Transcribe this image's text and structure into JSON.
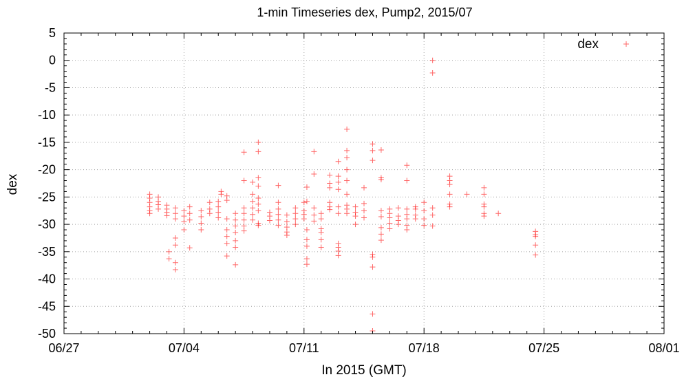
{
  "chart_data": {
    "type": "scatter",
    "title": "1-min Timeseries dex, Pump2, 2015/07",
    "xlabel": "In 2015 (GMT)",
    "ylabel": "dex",
    "xlim": [
      "2015-06-27",
      "2015-08-01"
    ],
    "ylim": [
      -50,
      5
    ],
    "x_ticks": [
      "06/27",
      "07/04",
      "07/11",
      "07/18",
      "07/25",
      "08/01"
    ],
    "y_ticks": [
      "5",
      "0",
      "-5",
      "-10",
      "-15",
      "-20",
      "-25",
      "-30",
      "-35",
      "-40",
      "-45",
      "-50"
    ],
    "grid": true,
    "legend_position": "top-right",
    "series": [
      {
        "name": "dex",
        "color": "#ff0000",
        "marker": "plus",
        "points": [
          [
            "2015-07-02 00:00",
            -24.5
          ],
          [
            "2015-07-02 00:00",
            -25.2
          ],
          [
            "2015-07-02 00:00",
            -26.0
          ],
          [
            "2015-07-02 00:00",
            -26.8
          ],
          [
            "2015-07-02 00:00",
            -27.5
          ],
          [
            "2015-07-02 00:00",
            -28.0
          ],
          [
            "2015-07-02 12:00",
            -25.0
          ],
          [
            "2015-07-02 12:00",
            -25.8
          ],
          [
            "2015-07-02 12:00",
            -26.4
          ],
          [
            "2015-07-02 12:00",
            -27.2
          ],
          [
            "2015-07-03 00:00",
            -26.5
          ],
          [
            "2015-07-03 00:00",
            -27.2
          ],
          [
            "2015-07-03 00:00",
            -27.8
          ],
          [
            "2015-07-03 00:00",
            -28.4
          ],
          [
            "2015-07-03 03:00",
            -35.0
          ],
          [
            "2015-07-03 03:00",
            -36.3
          ],
          [
            "2015-07-03 12:00",
            -27.0
          ],
          [
            "2015-07-03 12:00",
            -28.0
          ],
          [
            "2015-07-03 12:00",
            -29.0
          ],
          [
            "2015-07-03 12:00",
            -32.5
          ],
          [
            "2015-07-03 12:00",
            -33.8
          ],
          [
            "2015-07-03 12:00",
            -37.0
          ],
          [
            "2015-07-03 12:00",
            -38.3
          ],
          [
            "2015-07-04 00:00",
            -27.5
          ],
          [
            "2015-07-04 00:00",
            -28.5
          ],
          [
            "2015-07-04 00:00",
            -29.5
          ],
          [
            "2015-07-04 00:00",
            -31.0
          ],
          [
            "2015-07-04 08:00",
            -26.8
          ],
          [
            "2015-07-04 08:00",
            -28.0
          ],
          [
            "2015-07-04 08:00",
            -29.2
          ],
          [
            "2015-07-04 08:00",
            -34.3
          ],
          [
            "2015-07-05 00:00",
            -27.5
          ],
          [
            "2015-07-05 00:00",
            -28.6
          ],
          [
            "2015-07-05 00:00",
            -29.8
          ],
          [
            "2015-07-05 00:00",
            -31.0
          ],
          [
            "2015-07-05 12:00",
            -26.0
          ],
          [
            "2015-07-05 12:00",
            -27.2
          ],
          [
            "2015-07-05 12:00",
            -28.0
          ],
          [
            "2015-07-06 00:00",
            -25.8
          ],
          [
            "2015-07-06 00:00",
            -26.8
          ],
          [
            "2015-07-06 00:00",
            -27.8
          ],
          [
            "2015-07-06 00:00",
            -28.8
          ],
          [
            "2015-07-06 04:00",
            -24.0
          ],
          [
            "2015-07-06 04:00",
            -24.5
          ],
          [
            "2015-07-06 12:00",
            -24.8
          ],
          [
            "2015-07-06 12:00",
            -25.6
          ],
          [
            "2015-07-06 12:00",
            -29.0
          ],
          [
            "2015-07-06 12:00",
            -31.0
          ],
          [
            "2015-07-06 12:00",
            -32.2
          ],
          [
            "2015-07-06 12:00",
            -33.5
          ],
          [
            "2015-07-06 12:00",
            -35.8
          ],
          [
            "2015-07-07 00:00",
            -28.0
          ],
          [
            "2015-07-07 00:00",
            -29.2
          ],
          [
            "2015-07-07 00:00",
            -30.3
          ],
          [
            "2015-07-07 00:00",
            -31.5
          ],
          [
            "2015-07-07 00:00",
            -33.0
          ],
          [
            "2015-07-07 00:00",
            -34.2
          ],
          [
            "2015-07-07 00:00",
            -37.4
          ],
          [
            "2015-07-07 12:00",
            -16.8
          ],
          [
            "2015-07-07 12:00",
            -22.0
          ],
          [
            "2015-07-07 12:00",
            -27.0
          ],
          [
            "2015-07-07 12:00",
            -28.0
          ],
          [
            "2015-07-07 12:00",
            -29.2
          ],
          [
            "2015-07-07 12:00",
            -30.3
          ],
          [
            "2015-07-07 12:00",
            -31.2
          ],
          [
            "2015-07-08 00:00",
            -22.3
          ],
          [
            "2015-07-08 00:00",
            -24.5
          ],
          [
            "2015-07-08 00:00",
            -25.8
          ],
          [
            "2015-07-08 00:00",
            -27.0
          ],
          [
            "2015-07-08 00:00",
            -28.2
          ],
          [
            "2015-07-08 00:00",
            -29.2
          ],
          [
            "2015-07-08 08:00",
            -21.5
          ],
          [
            "2015-07-08 08:00",
            -23.0
          ],
          [
            "2015-07-08 08:00",
            -15.0
          ],
          [
            "2015-07-08 08:00",
            -16.7
          ],
          [
            "2015-07-08 08:00",
            -25.2
          ],
          [
            "2015-07-08 08:00",
            -26.3
          ],
          [
            "2015-07-08 08:00",
            -27.5
          ],
          [
            "2015-07-08 08:00",
            -29.8
          ],
          [
            "2015-07-08 08:00",
            -30.2
          ],
          [
            "2015-07-09 00:00",
            -27.8
          ],
          [
            "2015-07-09 00:00",
            -28.5
          ],
          [
            "2015-07-09 00:00",
            -29.3
          ],
          [
            "2015-07-09 12:00",
            -22.9
          ],
          [
            "2015-07-09 12:00",
            -26.0
          ],
          [
            "2015-07-09 12:00",
            -27.2
          ],
          [
            "2015-07-09 12:00",
            -28.2
          ],
          [
            "2015-07-09 12:00",
            -29.2
          ],
          [
            "2015-07-09 12:00",
            -30.2
          ],
          [
            "2015-07-10 00:00",
            -28.3
          ],
          [
            "2015-07-10 00:00",
            -29.5
          ],
          [
            "2015-07-10 00:00",
            -30.5
          ],
          [
            "2015-07-10 00:00",
            -31.4
          ],
          [
            "2015-07-10 00:00",
            -32.0
          ],
          [
            "2015-07-10 12:00",
            -27.0
          ],
          [
            "2015-07-10 12:00",
            -28.0
          ],
          [
            "2015-07-10 12:00",
            -29.0
          ],
          [
            "2015-07-10 12:00",
            -30.0
          ],
          [
            "2015-07-11 00:00",
            -26.0
          ],
          [
            "2015-07-11 00:00",
            -27.5
          ],
          [
            "2015-07-11 00:00",
            -28.2
          ],
          [
            "2015-07-11 00:00",
            -29.0
          ],
          [
            "2015-07-11 04:00",
            -23.2
          ],
          [
            "2015-07-11 04:00",
            -25.8
          ],
          [
            "2015-07-11 04:00",
            -31.0
          ],
          [
            "2015-07-11 04:00",
            -32.8
          ],
          [
            "2015-07-11 04:00",
            -34.0
          ],
          [
            "2015-07-11 04:00",
            -36.3
          ],
          [
            "2015-07-11 04:00",
            -37.3
          ],
          [
            "2015-07-11 14:00",
            -16.7
          ],
          [
            "2015-07-11 14:00",
            -20.8
          ],
          [
            "2015-07-11 14:00",
            -27.0
          ],
          [
            "2015-07-11 14:00",
            -28.3
          ],
          [
            "2015-07-11 14:00",
            -29.4
          ],
          [
            "2015-07-12 00:00",
            -28.0
          ],
          [
            "2015-07-12 00:00",
            -29.0
          ],
          [
            "2015-07-12 00:00",
            -30.8
          ],
          [
            "2015-07-12 00:00",
            -31.5
          ],
          [
            "2015-07-12 00:00",
            -32.8
          ],
          [
            "2015-07-12 00:00",
            -34.2
          ],
          [
            "2015-07-12 12:00",
            -21.0
          ],
          [
            "2015-07-12 12:00",
            -22.5
          ],
          [
            "2015-07-12 12:00",
            -23.3
          ],
          [
            "2015-07-12 12:00",
            -26.0
          ],
          [
            "2015-07-12 12:00",
            -26.8
          ],
          [
            "2015-07-12 12:00",
            -27.3
          ],
          [
            "2015-07-13 00:00",
            -18.5
          ],
          [
            "2015-07-13 00:00",
            -21.2
          ],
          [
            "2015-07-13 00:00",
            -22.3
          ],
          [
            "2015-07-13 00:00",
            -23.6
          ],
          [
            "2015-07-13 00:00",
            -26.8
          ],
          [
            "2015-07-13 00:00",
            -28.0
          ],
          [
            "2015-07-13 00:00",
            -33.5
          ],
          [
            "2015-07-13 00:00",
            -34.2
          ],
          [
            "2015-07-13 00:00",
            -34.9
          ],
          [
            "2015-07-13 00:00",
            -35.7
          ],
          [
            "2015-07-13 12:00",
            -12.6
          ],
          [
            "2015-07-13 12:00",
            -16.5
          ],
          [
            "2015-07-13 12:00",
            -17.8
          ],
          [
            "2015-07-13 12:00",
            -20.0
          ],
          [
            "2015-07-13 12:00",
            -22.0
          ],
          [
            "2015-07-13 12:00",
            -24.5
          ],
          [
            "2015-07-13 12:00",
            -26.5
          ],
          [
            "2015-07-13 12:00",
            -27.2
          ],
          [
            "2015-07-13 12:00",
            -28.0
          ],
          [
            "2015-07-14 00:00",
            -26.8
          ],
          [
            "2015-07-14 00:00",
            -27.8
          ],
          [
            "2015-07-14 00:00",
            -28.5
          ],
          [
            "2015-07-14 00:00",
            -30.0
          ],
          [
            "2015-07-14 12:00",
            -23.3
          ],
          [
            "2015-07-14 12:00",
            -26.2
          ],
          [
            "2015-07-14 12:00",
            -27.5
          ],
          [
            "2015-07-14 12:00",
            -28.8
          ],
          [
            "2015-07-15 00:00",
            -15.3
          ],
          [
            "2015-07-15 00:00",
            -16.5
          ],
          [
            "2015-07-15 00:00",
            -18.3
          ],
          [
            "2015-07-15 00:00",
            -35.5
          ],
          [
            "2015-07-15 00:00",
            -36.0
          ],
          [
            "2015-07-15 00:00",
            -37.8
          ],
          [
            "2015-07-15 00:00",
            -46.4
          ],
          [
            "2015-07-15 00:00",
            -49.5
          ],
          [
            "2015-07-15 12:00",
            -16.4
          ],
          [
            "2015-07-15 12:00",
            -21.5
          ],
          [
            "2015-07-15 12:00",
            -21.8
          ],
          [
            "2015-07-15 12:00",
            -27.5
          ],
          [
            "2015-07-15 12:00",
            -28.6
          ],
          [
            "2015-07-15 12:00",
            -30.6
          ],
          [
            "2015-07-15 12:00",
            -31.8
          ],
          [
            "2015-07-15 12:00",
            -32.9
          ],
          [
            "2015-07-16 00:00",
            -27.2
          ],
          [
            "2015-07-16 00:00",
            -28.0
          ],
          [
            "2015-07-16 00:00",
            -28.8
          ],
          [
            "2015-07-16 00:00",
            -29.8
          ],
          [
            "2015-07-16 00:00",
            -30.8
          ],
          [
            "2015-07-16 12:00",
            -27.0
          ],
          [
            "2015-07-16 12:00",
            -28.5
          ],
          [
            "2015-07-16 12:00",
            -29.3
          ],
          [
            "2015-07-16 12:00",
            -30.0
          ],
          [
            "2015-07-17 00:00",
            -19.2
          ],
          [
            "2015-07-17 00:00",
            -22.0
          ],
          [
            "2015-07-17 00:00",
            -27.2
          ],
          [
            "2015-07-17 00:00",
            -28.2
          ],
          [
            "2015-07-17 00:00",
            -29.0
          ],
          [
            "2015-07-17 00:00",
            -30.2
          ],
          [
            "2015-07-17 00:00",
            -31.0
          ],
          [
            "2015-07-17 12:00",
            -26.8
          ],
          [
            "2015-07-17 12:00",
            -27.2
          ],
          [
            "2015-07-17 12:00",
            -28.3
          ],
          [
            "2015-07-17 12:00",
            -29.0
          ],
          [
            "2015-07-18 00:00",
            -26.0
          ],
          [
            "2015-07-18 00:00",
            -27.5
          ],
          [
            "2015-07-18 00:00",
            -29.0
          ],
          [
            "2015-07-18 00:00",
            -30.2
          ],
          [
            "2015-07-18 12:00",
            0.0
          ],
          [
            "2015-07-18 12:00",
            -2.3
          ],
          [
            "2015-07-18 12:00",
            -27.0
          ],
          [
            "2015-07-18 12:00",
            -28.3
          ],
          [
            "2015-07-18 12:00",
            -30.3
          ],
          [
            "2015-07-19 12:00",
            -21.2
          ],
          [
            "2015-07-19 12:00",
            -22.0
          ],
          [
            "2015-07-19 12:00",
            -22.7
          ],
          [
            "2015-07-19 12:00",
            -24.5
          ],
          [
            "2015-07-19 12:00",
            -26.3
          ],
          [
            "2015-07-19 12:00",
            -26.8
          ],
          [
            "2015-07-20 12:00",
            -24.5
          ],
          [
            "2015-07-21 12:00",
            -23.3
          ],
          [
            "2015-07-21 12:00",
            -24.5
          ],
          [
            "2015-07-21 12:00",
            -26.3
          ],
          [
            "2015-07-21 12:00",
            -26.8
          ],
          [
            "2015-07-21 12:00",
            -28.0
          ],
          [
            "2015-07-21 12:00",
            -28.5
          ],
          [
            "2015-07-22 08:00",
            -28.0
          ],
          [
            "2015-07-24 12:00",
            -31.3
          ],
          [
            "2015-07-24 12:00",
            -31.9
          ],
          [
            "2015-07-24 12:00",
            -32.2
          ],
          [
            "2015-07-24 12:00",
            -33.8
          ],
          [
            "2015-07-24 12:00",
            -35.6
          ]
        ]
      }
    ]
  }
}
